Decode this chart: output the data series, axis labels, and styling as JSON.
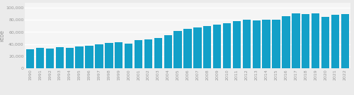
{
  "years": [
    1990,
    1991,
    1992,
    1993,
    1994,
    1995,
    1996,
    1997,
    1998,
    1999,
    2000,
    2001,
    2002,
    2003,
    2004,
    2005,
    2006,
    2007,
    2008,
    2009,
    2010,
    2011,
    2012,
    2013,
    2014,
    2015,
    2016,
    2017,
    2018,
    2019,
    2020,
    2021,
    2022
  ],
  "values": [
    32000,
    33500,
    33000,
    35000,
    34000,
    36500,
    37500,
    40000,
    41500,
    43000,
    41000,
    46500,
    47500,
    50000,
    55000,
    62000,
    65000,
    67000,
    70000,
    72000,
    75000,
    78000,
    80000,
    79000,
    80500,
    80000,
    86000,
    91000,
    90000,
    90500,
    85000,
    88000,
    90000
  ],
  "bar_color": "#13a0c8",
  "ylabel": "ktoe",
  "yticks": [
    0,
    20000,
    40000,
    60000,
    80000,
    100000
  ],
  "ylim": [
    0,
    108000
  ],
  "background_color": "#ebebeb",
  "plot_bg_color": "#f5f5f5",
  "grid_color": "#ffffff",
  "tick_label_fontsize": 4.5,
  "ylabel_fontsize": 5.5
}
